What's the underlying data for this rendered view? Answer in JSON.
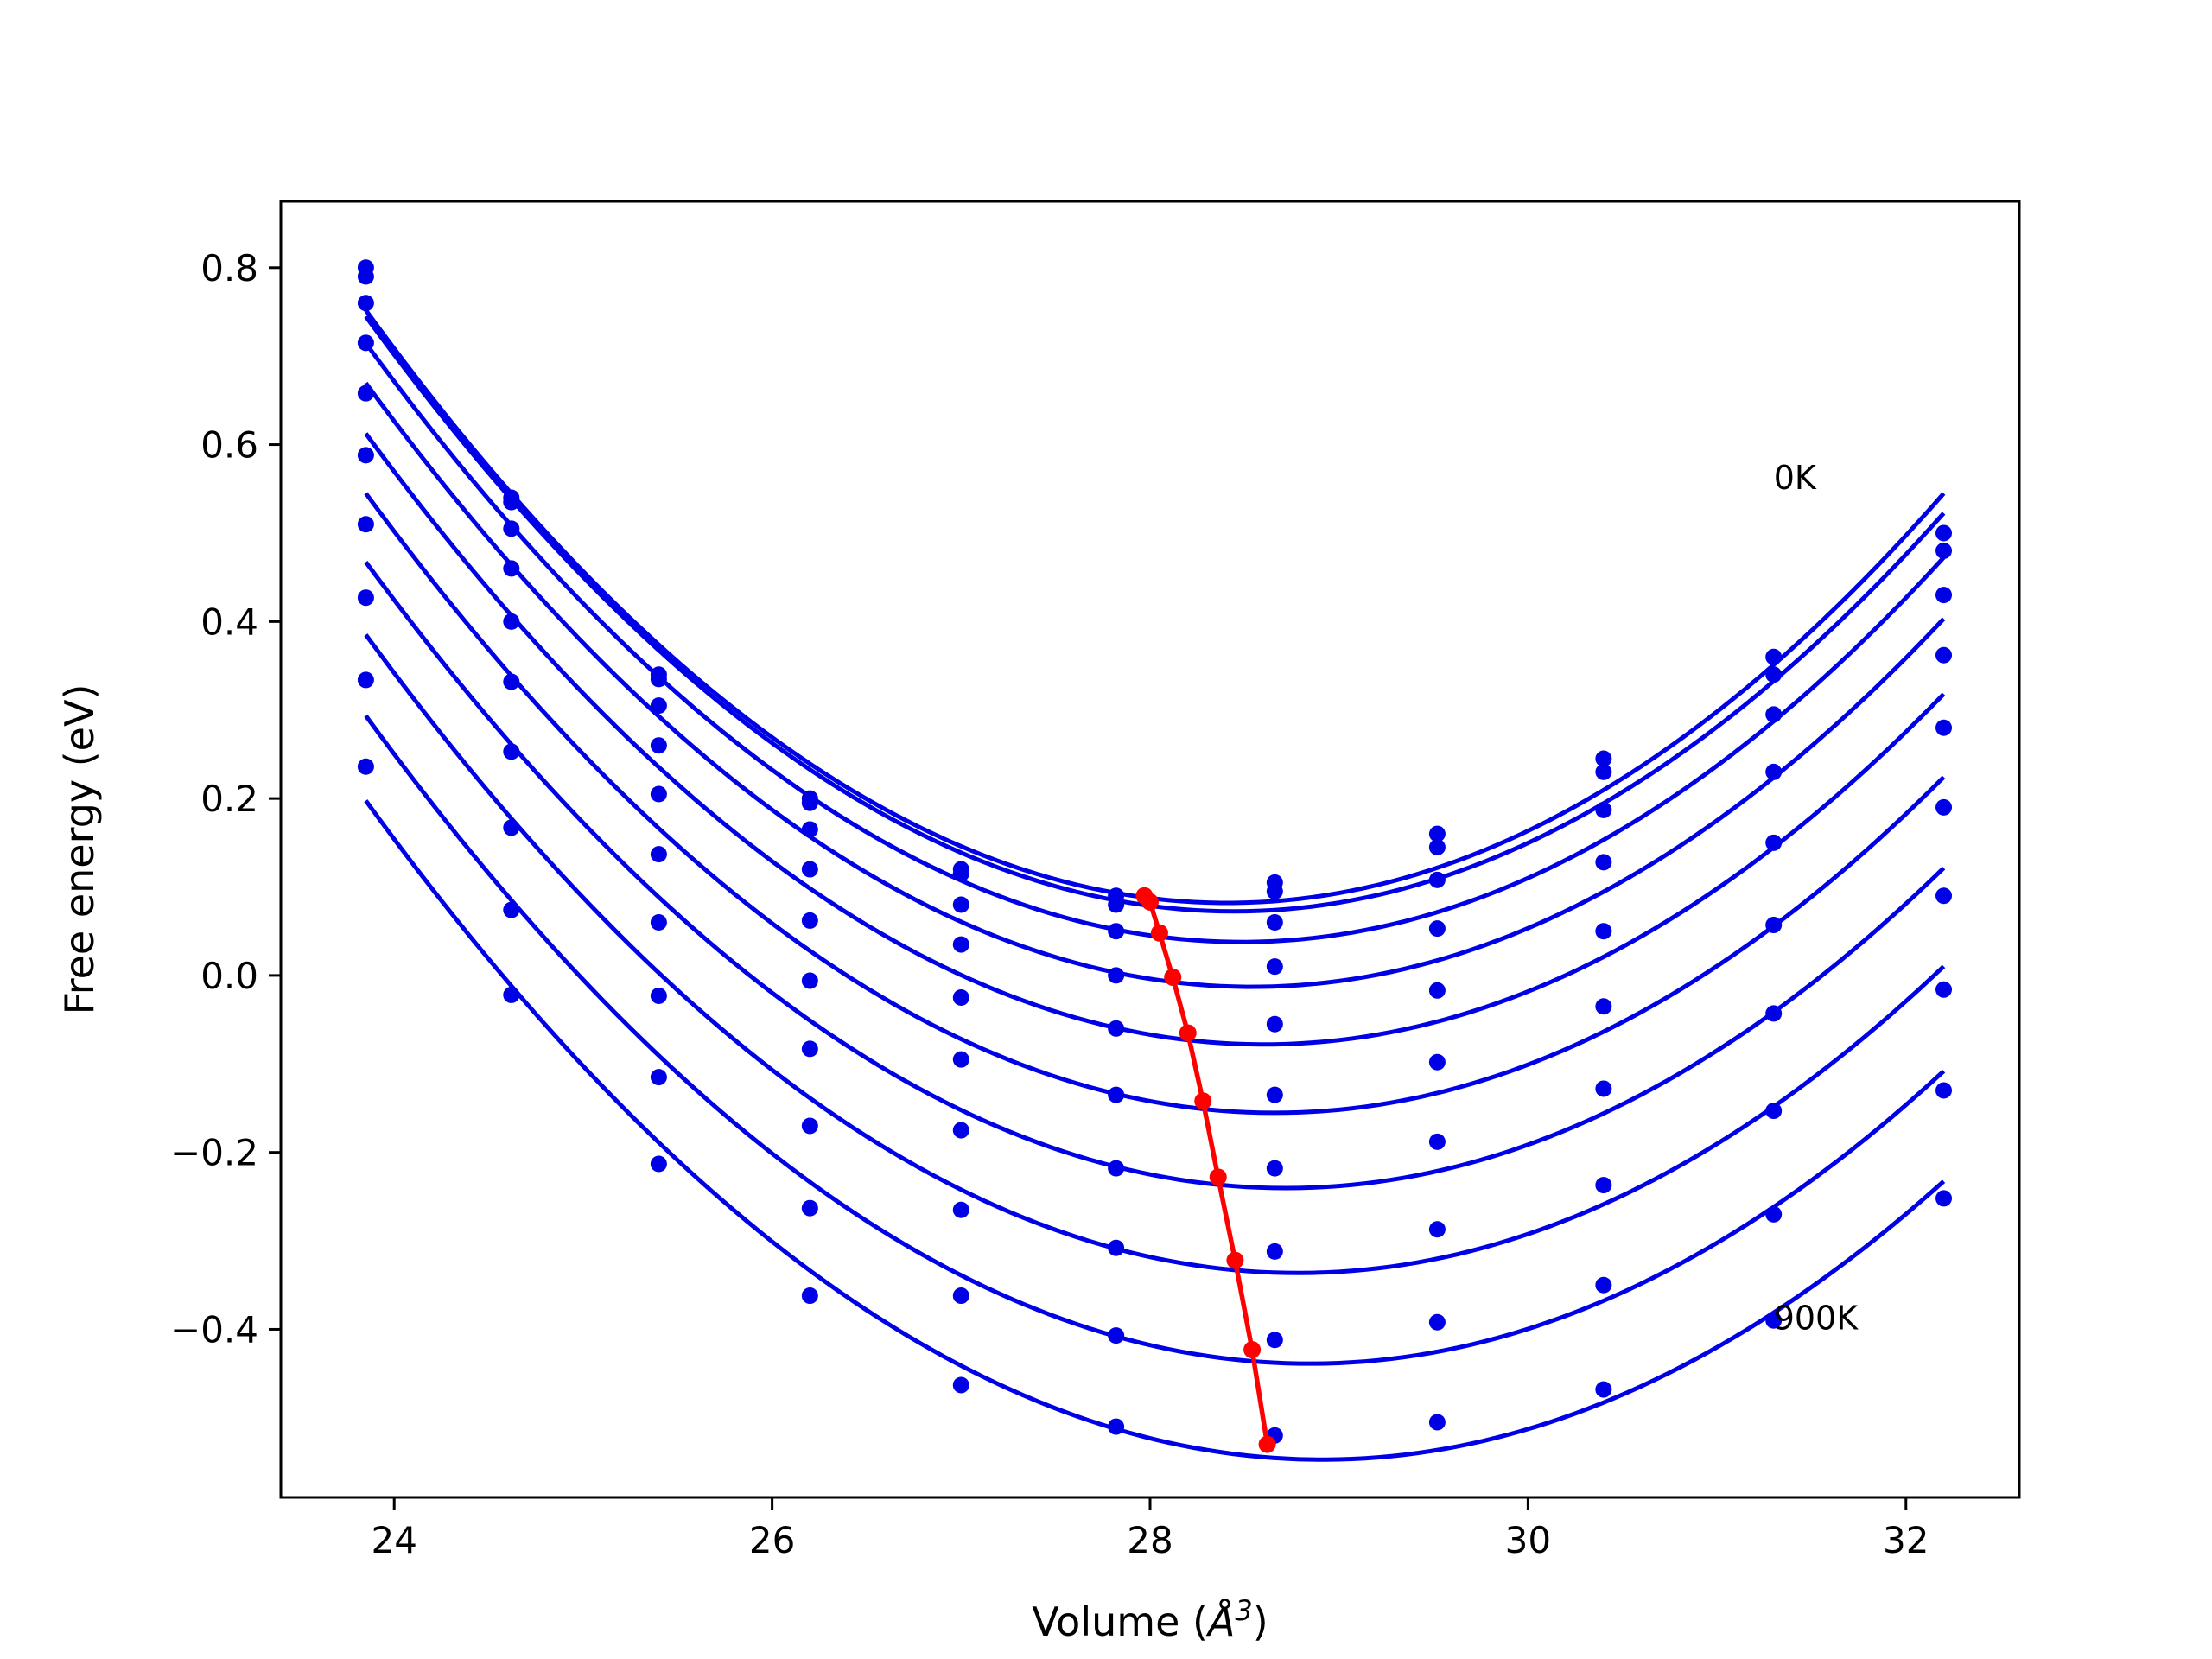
{
  "chart_data": {
    "type": "line",
    "title": "",
    "xlabel_main": "Volume (",
    "xlabel_unit": "Å",
    "xlabel_sup": "3",
    "xlabel_close": ")",
    "ylabel": "Free energy (eV)",
    "xlim": [
      23.4,
      32.6
    ],
    "ylim": [
      -0.59,
      0.875
    ],
    "x_ticks": [
      24,
      26,
      28,
      30,
      32
    ],
    "x_tick_labels": [
      "24",
      "26",
      "28",
      "30",
      "32"
    ],
    "y_ticks": [
      -0.4,
      -0.2,
      0.0,
      0.2,
      0.4,
      0.6,
      0.8
    ],
    "y_tick_labels": [
      "−0.4",
      "−0.2",
      "0.0",
      "0.2",
      "0.4",
      "0.6",
      "0.8"
    ],
    "grid": false,
    "annotations": [
      {
        "text": "0K",
        "x": 31.3,
        "y": 0.55
      },
      {
        "text": "900K",
        "x": 31.3,
        "y": -0.4
      }
    ],
    "volumes": [
      23.85,
      24.62,
      25.4,
      26.2,
      27.0,
      27.82,
      28.66,
      29.52,
      30.4,
      31.3,
      32.2
    ],
    "series": [
      {
        "values": [
          0.8,
          0.54,
          0.34,
          0.2,
          0.12,
          0.09,
          0.105,
          0.16,
          0.245,
          0.36,
          0.5
        ]
      },
      {
        "values": [
          0.79,
          0.535,
          0.335,
          0.195,
          0.115,
          0.08,
          0.095,
          0.145,
          0.23,
          0.34,
          0.48
        ]
      },
      {
        "values": [
          0.76,
          0.505,
          0.305,
          0.165,
          0.08,
          0.05,
          0.06,
          0.108,
          0.187,
          0.295,
          0.43
        ]
      },
      {
        "values": [
          0.715,
          0.46,
          0.26,
          0.12,
          0.035,
          0.0,
          0.01,
          0.053,
          0.128,
          0.23,
          0.362
        ]
      },
      {
        "values": [
          0.658,
          0.4,
          0.205,
          0.062,
          -0.025,
          -0.06,
          -0.055,
          -0.017,
          0.05,
          0.15,
          0.28
        ]
      },
      {
        "values": [
          0.588,
          0.332,
          0.137,
          -0.006,
          -0.095,
          -0.135,
          -0.135,
          -0.098,
          -0.035,
          0.057,
          0.19
        ]
      },
      {
        "values": [
          0.51,
          0.253,
          0.06,
          -0.083,
          -0.175,
          -0.218,
          -0.218,
          -0.188,
          -0.128,
          -0.043,
          0.09
        ]
      },
      {
        "values": [
          0.427,
          0.167,
          -0.023,
          -0.17,
          -0.265,
          -0.308,
          -0.312,
          -0.287,
          -0.237,
          -0.153,
          -0.016
        ]
      },
      {
        "values": [
          0.334,
          0.074,
          -0.115,
          -0.263,
          -0.362,
          -0.407,
          -0.412,
          -0.392,
          -0.35,
          -0.27,
          -0.13
        ]
      },
      {
        "values": [
          0.236,
          -0.022,
          -0.213,
          -0.362,
          -0.463,
          -0.51,
          -0.52,
          -0.505,
          -0.468,
          -0.39,
          -0.252
        ]
      }
    ],
    "equilibrium": {
      "x": [
        27.97,
        28.0,
        28.05,
        28.12,
        28.2,
        28.28,
        28.36,
        28.45,
        28.54,
        28.62
      ],
      "y": [
        0.09,
        0.083,
        0.048,
        -0.002,
        -0.065,
        -0.142,
        -0.228,
        -0.322,
        -0.423,
        -0.53
      ]
    },
    "colors": {
      "series": "#0000e6",
      "equilibrium": "#ff0000",
      "axes": "#000000"
    }
  }
}
